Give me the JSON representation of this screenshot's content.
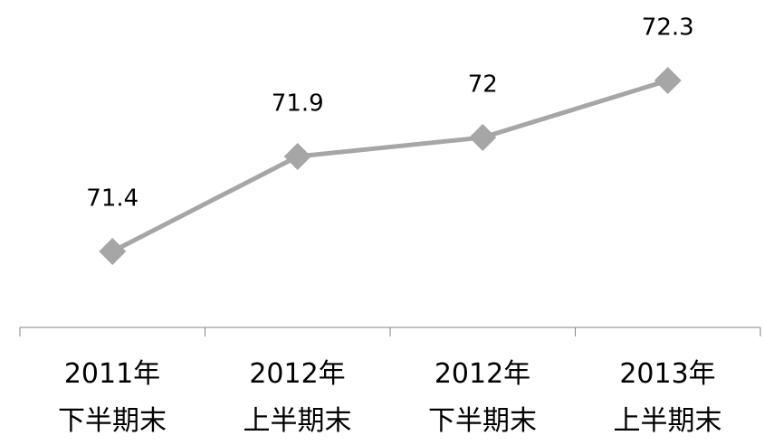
{
  "chart_data": {
    "type": "line",
    "categories": [
      "2011年\n下半期末",
      "2012年\n上半期末",
      "2012年\n下半期末",
      "2013年\n上半期末"
    ],
    "series": [
      {
        "name": null,
        "color": "#a6a6a6",
        "values": [
          71.4,
          71.9,
          72.0,
          72.3
        ]
      }
    ],
    "ylim": [
      71.0,
      72.7
    ],
    "grid": false
  }
}
